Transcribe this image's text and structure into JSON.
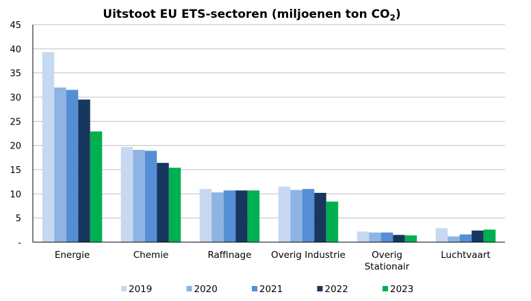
{
  "chart_data": {
    "type": "bar",
    "title_main": "Uitstoot EU ETS-sectoren (miljoenen ton CO",
    "title_sub": "2",
    "title_end": ")",
    "categories": [
      [
        "Energie"
      ],
      [
        "Chemie"
      ],
      [
        "Raffinage"
      ],
      [
        "Overig Industrie"
      ],
      [
        "Overig",
        "Stationair"
      ],
      [
        "Luchtvaart"
      ]
    ],
    "ylim": [
      0,
      45
    ],
    "yticks": [
      0,
      5,
      10,
      15,
      20,
      25,
      30,
      35,
      40,
      45
    ],
    "ytick_labels": [
      "-",
      "5",
      "10",
      "15",
      "20",
      "25",
      "30",
      "35",
      "40",
      "45"
    ],
    "grid": true,
    "legend_position": "bottom",
    "series": [
      {
        "name": "2019",
        "color": "#c6d9f1",
        "values": [
          39.3,
          19.7,
          11.0,
          11.5,
          2.2,
          2.9
        ]
      },
      {
        "name": "2020",
        "color": "#8db4e2",
        "values": [
          32.0,
          19.1,
          10.3,
          10.8,
          2.0,
          1.2
        ]
      },
      {
        "name": "2021",
        "color": "#558ed5",
        "values": [
          31.5,
          18.9,
          10.7,
          11.0,
          2.0,
          1.6
        ]
      },
      {
        "name": "2022",
        "color": "#17375e",
        "values": [
          29.5,
          16.4,
          10.7,
          10.2,
          1.5,
          2.4
        ]
      },
      {
        "name": "2023",
        "color": "#00b050",
        "values": [
          22.9,
          15.4,
          10.7,
          8.4,
          1.4,
          2.6
        ]
      }
    ]
  }
}
